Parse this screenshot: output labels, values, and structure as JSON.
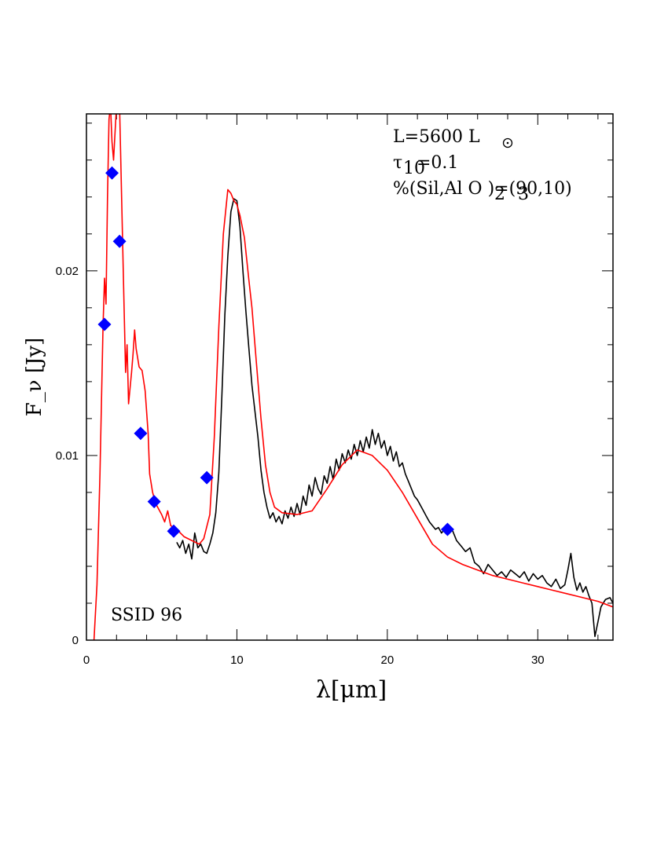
{
  "chart_data": {
    "type": "line",
    "xlabel": "λ[μm]",
    "ylabel": "F_ν [Jy]",
    "xlim": [
      0,
      35
    ],
    "ylim": [
      0,
      0.0285
    ],
    "x_ticks": [
      0,
      10,
      20,
      30
    ],
    "x_tick_labels": [
      "0",
      "10",
      "20",
      "30"
    ],
    "y_ticks": [
      0,
      0.01,
      0.02
    ],
    "y_tick_labels": [
      "0",
      "0.01",
      "0.02"
    ],
    "grid": false,
    "annotations": {
      "object": "SSID 96",
      "luminosity": "L=5600 L",
      "tau": "=0.1",
      "composition": "%(Sil,Al O )=(90,10)"
    },
    "series": [
      {
        "color": "#000000",
        "style": "line",
        "points": [
          [
            6.0,
            0.0053
          ],
          [
            6.2,
            0.005
          ],
          [
            6.4,
            0.0054
          ],
          [
            6.6,
            0.0047
          ],
          [
            6.8,
            0.0052
          ],
          [
            7.0,
            0.0044
          ],
          [
            7.2,
            0.0058
          ],
          [
            7.4,
            0.005
          ],
          [
            7.6,
            0.0052
          ],
          [
            7.8,
            0.0048
          ],
          [
            8.0,
            0.0047
          ],
          [
            8.2,
            0.0052
          ],
          [
            8.4,
            0.0058
          ],
          [
            8.6,
            0.0069
          ],
          [
            8.8,
            0.0091
          ],
          [
            9.0,
            0.0132
          ],
          [
            9.2,
            0.0176
          ],
          [
            9.4,
            0.0208
          ],
          [
            9.6,
            0.0232
          ],
          [
            9.8,
            0.0239
          ],
          [
            10.0,
            0.0238
          ],
          [
            10.2,
            0.0224
          ],
          [
            10.4,
            0.02
          ],
          [
            10.6,
            0.0178
          ],
          [
            10.8,
            0.0158
          ],
          [
            11.0,
            0.0138
          ],
          [
            11.2,
            0.0124
          ],
          [
            11.4,
            0.011
          ],
          [
            11.6,
            0.0092
          ],
          [
            11.8,
            0.008
          ],
          [
            12.0,
            0.0072
          ],
          [
            12.2,
            0.0066
          ],
          [
            12.4,
            0.0069
          ],
          [
            12.6,
            0.0064
          ],
          [
            12.8,
            0.0067
          ],
          [
            13.0,
            0.0063
          ],
          [
            13.2,
            0.007
          ],
          [
            13.4,
            0.0066
          ],
          [
            13.6,
            0.0072
          ],
          [
            13.8,
            0.0067
          ],
          [
            14.0,
            0.0074
          ],
          [
            14.2,
            0.0068
          ],
          [
            14.4,
            0.0078
          ],
          [
            14.6,
            0.0073
          ],
          [
            14.8,
            0.0084
          ],
          [
            15.0,
            0.0078
          ],
          [
            15.2,
            0.0088
          ],
          [
            15.4,
            0.0082
          ],
          [
            15.6,
            0.0079
          ],
          [
            15.8,
            0.0089
          ],
          [
            16.0,
            0.0085
          ],
          [
            16.2,
            0.0094
          ],
          [
            16.4,
            0.0087
          ],
          [
            16.6,
            0.0098
          ],
          [
            16.8,
            0.0092
          ],
          [
            17.0,
            0.0101
          ],
          [
            17.2,
            0.0096
          ],
          [
            17.4,
            0.0103
          ],
          [
            17.6,
            0.0098
          ],
          [
            17.8,
            0.0106
          ],
          [
            18.0,
            0.01
          ],
          [
            18.2,
            0.0108
          ],
          [
            18.4,
            0.0102
          ],
          [
            18.6,
            0.011
          ],
          [
            18.8,
            0.0104
          ],
          [
            19.0,
            0.0114
          ],
          [
            19.2,
            0.0106
          ],
          [
            19.4,
            0.0112
          ],
          [
            19.6,
            0.0104
          ],
          [
            19.8,
            0.0108
          ],
          [
            20.0,
            0.01
          ],
          [
            20.2,
            0.0105
          ],
          [
            20.4,
            0.0097
          ],
          [
            20.6,
            0.0102
          ],
          [
            20.8,
            0.0094
          ],
          [
            21.0,
            0.0096
          ],
          [
            21.2,
            0.009
          ],
          [
            21.4,
            0.0086
          ],
          [
            21.6,
            0.0082
          ],
          [
            21.8,
            0.0078
          ],
          [
            22.0,
            0.0076
          ],
          [
            22.2,
            0.0073
          ],
          [
            22.4,
            0.007
          ],
          [
            22.6,
            0.0067
          ],
          [
            22.8,
            0.0064
          ],
          [
            23.0,
            0.0062
          ],
          [
            23.2,
            0.006
          ],
          [
            23.4,
            0.0061
          ],
          [
            23.6,
            0.0058
          ],
          [
            23.8,
            0.006
          ],
          [
            24.0,
            0.0058
          ],
          [
            24.3,
            0.006
          ],
          [
            24.6,
            0.0054
          ],
          [
            24.9,
            0.0051
          ],
          [
            25.2,
            0.0048
          ],
          [
            25.5,
            0.005
          ],
          [
            25.8,
            0.0042
          ],
          [
            26.1,
            0.004
          ],
          [
            26.4,
            0.0036
          ],
          [
            26.7,
            0.0041
          ],
          [
            27.0,
            0.0038
          ],
          [
            27.3,
            0.0035
          ],
          [
            27.6,
            0.0037
          ],
          [
            27.9,
            0.0034
          ],
          [
            28.2,
            0.0038
          ],
          [
            28.5,
            0.0036
          ],
          [
            28.8,
            0.0034
          ],
          [
            29.1,
            0.0037
          ],
          [
            29.4,
            0.0032
          ],
          [
            29.7,
            0.0036
          ],
          [
            30.0,
            0.0033
          ],
          [
            30.3,
            0.0035
          ],
          [
            30.6,
            0.0031
          ],
          [
            30.9,
            0.0029
          ],
          [
            31.2,
            0.0033
          ],
          [
            31.5,
            0.0028
          ],
          [
            31.8,
            0.003
          ],
          [
            32.0,
            0.0038
          ],
          [
            32.2,
            0.0047
          ],
          [
            32.4,
            0.0034
          ],
          [
            32.6,
            0.0027
          ],
          [
            32.8,
            0.0031
          ],
          [
            33.0,
            0.0026
          ],
          [
            33.2,
            0.0029
          ],
          [
            33.4,
            0.0024
          ],
          [
            33.6,
            0.002
          ],
          [
            33.8,
            0.0002
          ],
          [
            34.0,
            0.001
          ],
          [
            34.2,
            0.0018
          ],
          [
            34.5,
            0.0022
          ],
          [
            34.8,
            0.0023
          ],
          [
            35.0,
            0.002
          ]
        ]
      },
      {
        "color": "#ff0000",
        "style": "line",
        "points": [
          [
            0.5,
            0.0
          ],
          [
            0.7,
            0.003
          ],
          [
            0.9,
            0.009
          ],
          [
            1.1,
            0.017
          ],
          [
            1.2,
            0.0196
          ],
          [
            1.3,
            0.0182
          ],
          [
            1.4,
            0.024
          ],
          [
            1.5,
            0.0282
          ],
          [
            1.6,
            0.029
          ],
          [
            1.7,
            0.027
          ],
          [
            1.8,
            0.026
          ],
          [
            2.0,
            0.029
          ],
          [
            2.2,
            0.029
          ],
          [
            2.5,
            0.018
          ],
          [
            2.6,
            0.0145
          ],
          [
            2.7,
            0.016
          ],
          [
            2.8,
            0.0128
          ],
          [
            3.0,
            0.0145
          ],
          [
            3.1,
            0.0155
          ],
          [
            3.2,
            0.0168
          ],
          [
            3.3,
            0.0158
          ],
          [
            3.5,
            0.0148
          ],
          [
            3.7,
            0.0146
          ],
          [
            3.9,
            0.0135
          ],
          [
            4.1,
            0.0112
          ],
          [
            4.2,
            0.009
          ],
          [
            4.4,
            0.008
          ],
          [
            4.6,
            0.0074
          ],
          [
            4.8,
            0.0071
          ],
          [
            5.0,
            0.0068
          ],
          [
            5.2,
            0.0064
          ],
          [
            5.4,
            0.007
          ],
          [
            5.6,
            0.0062
          ],
          [
            5.8,
            0.0061
          ],
          [
            6.0,
            0.006
          ],
          [
            6.5,
            0.0056
          ],
          [
            7.0,
            0.0054
          ],
          [
            7.5,
            0.0052
          ],
          [
            7.8,
            0.0055
          ],
          [
            8.2,
            0.0068
          ],
          [
            8.5,
            0.011
          ],
          [
            8.8,
            0.017
          ],
          [
            9.1,
            0.022
          ],
          [
            9.4,
            0.0244
          ],
          [
            9.6,
            0.0242
          ],
          [
            9.8,
            0.0238
          ],
          [
            10.0,
            0.0236
          ],
          [
            10.2,
            0.023
          ],
          [
            10.5,
            0.0218
          ],
          [
            10.8,
            0.0195
          ],
          [
            11.0,
            0.018
          ],
          [
            11.3,
            0.015
          ],
          [
            11.6,
            0.012
          ],
          [
            11.9,
            0.0095
          ],
          [
            12.2,
            0.008
          ],
          [
            12.5,
            0.0072
          ],
          [
            13.0,
            0.0069
          ],
          [
            14.0,
            0.0068
          ],
          [
            15.0,
            0.007
          ],
          [
            16.0,
            0.0082
          ],
          [
            17.0,
            0.0095
          ],
          [
            18.0,
            0.0103
          ],
          [
            19.0,
            0.01
          ],
          [
            20.0,
            0.0092
          ],
          [
            21.0,
            0.008
          ],
          [
            22.0,
            0.0066
          ],
          [
            23.0,
            0.0052
          ],
          [
            24.0,
            0.0045
          ],
          [
            25.0,
            0.0041
          ],
          [
            26.0,
            0.0038
          ],
          [
            27.0,
            0.0035
          ],
          [
            28.0,
            0.0033
          ],
          [
            29.0,
            0.0031
          ],
          [
            30.0,
            0.0029
          ],
          [
            31.0,
            0.0027
          ],
          [
            32.0,
            0.0025
          ],
          [
            33.0,
            0.0023
          ],
          [
            34.0,
            0.0021
          ],
          [
            35.0,
            0.0018
          ]
        ]
      },
      {
        "color": "#0000ff",
        "style": "diamond",
        "points": [
          [
            1.2,
            0.0171
          ],
          [
            1.7,
            0.0253
          ],
          [
            2.2,
            0.0216
          ],
          [
            3.6,
            0.0112
          ],
          [
            4.5,
            0.0075
          ],
          [
            5.8,
            0.0059
          ],
          [
            8.0,
            0.0088
          ],
          [
            24.0,
            0.006
          ]
        ]
      }
    ]
  }
}
